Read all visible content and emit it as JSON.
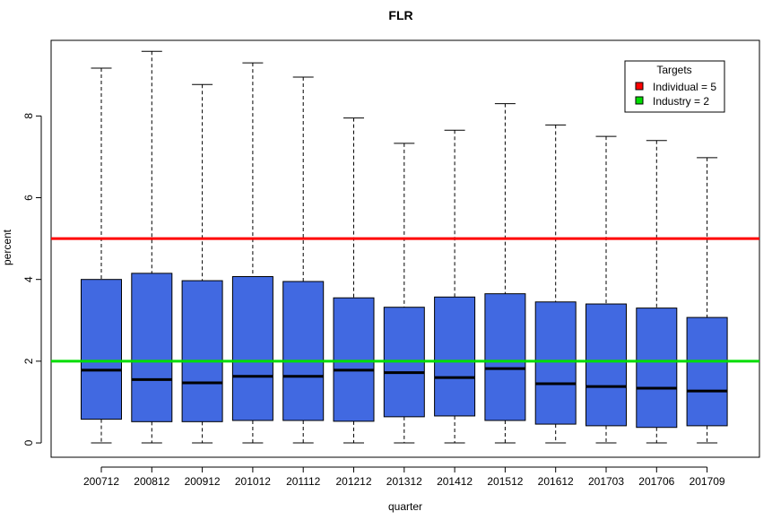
{
  "chart_data": {
    "type": "boxplot",
    "title": "FLR",
    "xlabel": "quarter",
    "ylabel": "percent",
    "ylim": [
      -0.35,
      9.85
    ],
    "yticks": [
      0,
      2,
      4,
      6,
      8
    ],
    "categories": [
      "200712",
      "200812",
      "200912",
      "201012",
      "201112",
      "201212",
      "201312",
      "201412",
      "201512",
      "201612",
      "201703",
      "201706",
      "201709"
    ],
    "boxes": [
      {
        "min": 0,
        "q1": 0.58,
        "median": 1.78,
        "q3": 4.0,
        "max": 9.17
      },
      {
        "min": 0,
        "q1": 0.52,
        "median": 1.55,
        "q3": 4.15,
        "max": 9.58
      },
      {
        "min": 0,
        "q1": 0.52,
        "median": 1.47,
        "q3": 3.97,
        "max": 8.77
      },
      {
        "min": 0,
        "q1": 0.55,
        "median": 1.63,
        "q3": 4.07,
        "max": 9.3
      },
      {
        "min": 0,
        "q1": 0.55,
        "median": 1.63,
        "q3": 3.95,
        "max": 8.95
      },
      {
        "min": 0,
        "q1": 0.53,
        "median": 1.78,
        "q3": 3.55,
        "max": 7.95
      },
      {
        "min": 0,
        "q1": 0.64,
        "median": 1.72,
        "q3": 3.32,
        "max": 7.33
      },
      {
        "min": 0,
        "q1": 0.66,
        "median": 1.6,
        "q3": 3.57,
        "max": 7.65
      },
      {
        "min": 0,
        "q1": 0.55,
        "median": 1.82,
        "q3": 3.65,
        "max": 8.3
      },
      {
        "min": 0,
        "q1": 0.46,
        "median": 1.45,
        "q3": 3.45,
        "max": 7.78
      },
      {
        "min": 0,
        "q1": 0.42,
        "median": 1.38,
        "q3": 3.4,
        "max": 7.5
      },
      {
        "min": 0,
        "q1": 0.38,
        "median": 1.34,
        "q3": 3.3,
        "max": 7.4
      },
      {
        "min": 0,
        "q1": 0.42,
        "median": 1.27,
        "q3": 3.07,
        "max": 6.98
      }
    ],
    "box_color": "#4169E1",
    "reference_lines": [
      {
        "name": "Individual = 5",
        "value": 5,
        "color": "#FF0000"
      },
      {
        "name": "Industry = 2",
        "value": 2,
        "color": "#00DD00"
      }
    ],
    "legend": {
      "title": "Targets",
      "placement": "top-right",
      "entries": [
        "Individual = 5",
        "Industry = 2"
      ]
    },
    "grid": false
  }
}
